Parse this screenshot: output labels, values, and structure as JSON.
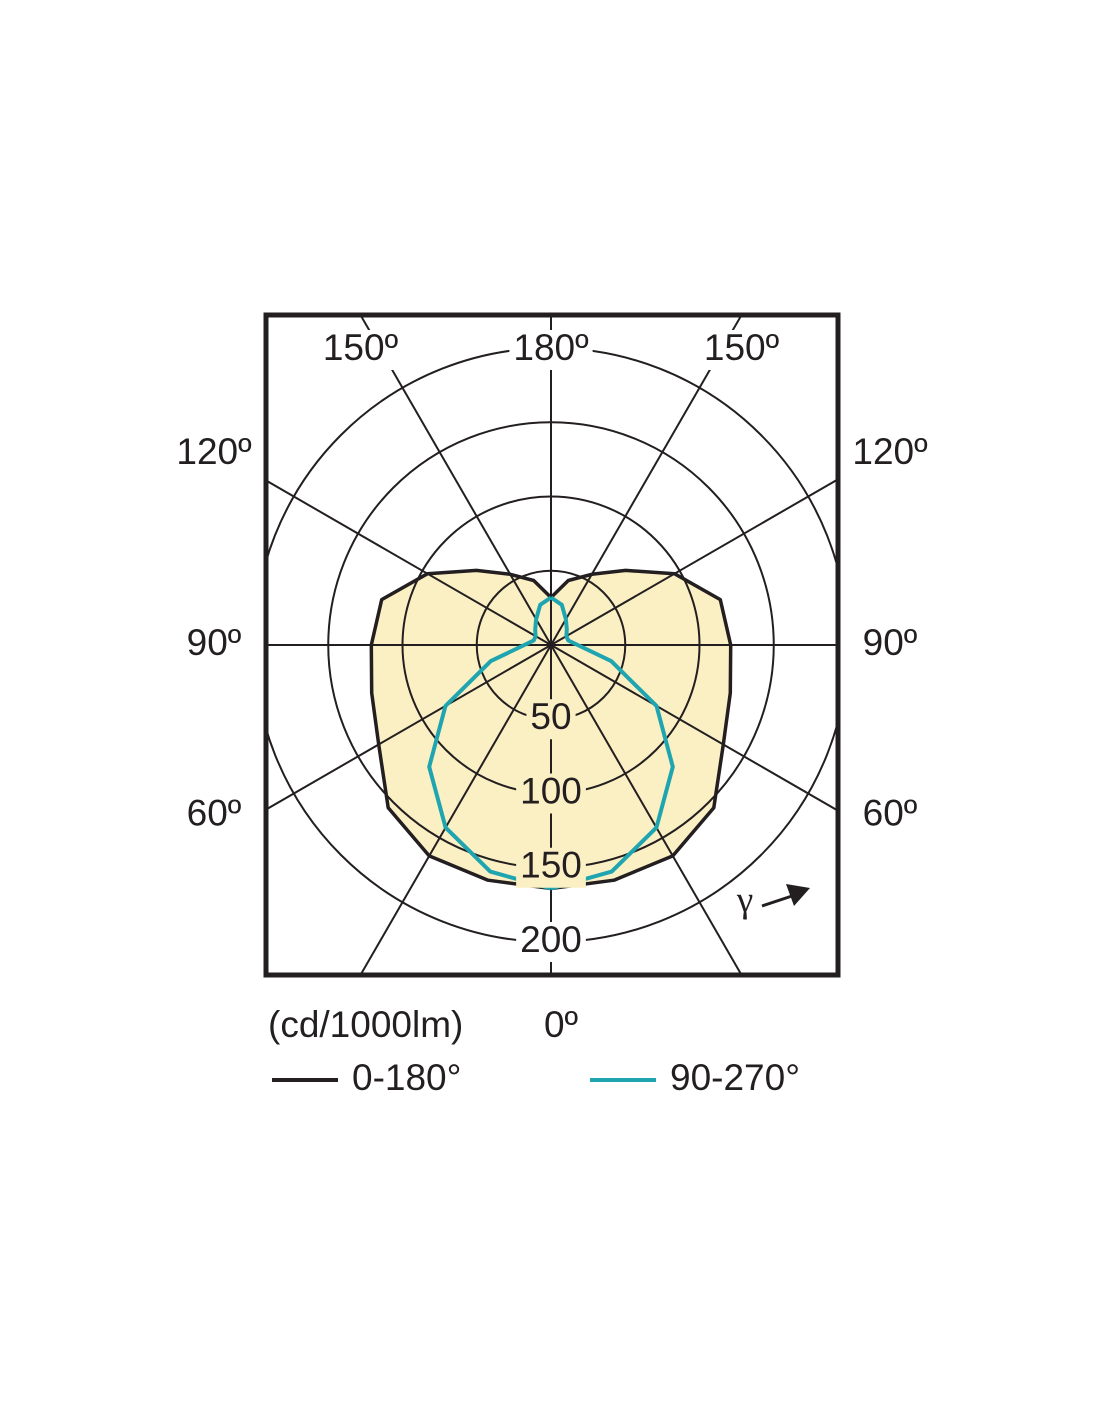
{
  "chart_data": {
    "type": "polar",
    "unit_label": "(cd/1000lm)",
    "gamma_label": "γ",
    "angles": [
      0,
      15,
      30,
      45,
      60,
      75,
      90,
      105,
      120,
      135,
      150,
      165,
      180
    ],
    "rlim": [
      0,
      200
    ],
    "rticks": [
      50,
      100,
      150,
      200
    ],
    "angle_ticks": [
      {
        "value": 0,
        "label": "0º"
      },
      {
        "value": 30,
        "label": null
      },
      {
        "value": 60,
        "label": "60º"
      },
      {
        "value": 90,
        "label": "90º"
      },
      {
        "value": 120,
        "label": "120º"
      },
      {
        "value": 150,
        "label": "150º"
      },
      {
        "value": 180,
        "label": "180º"
      }
    ],
    "series": [
      {
        "name": "0-180°",
        "color": "#231f20",
        "fill": "#fbefc4",
        "values": [
          164,
          164,
          164,
          155,
          134,
          125,
          121,
          118,
          96,
          71,
          55,
          45,
          32
        ]
      },
      {
        "name": "90-270°",
        "color": "#1fa5b0",
        "values": [
          164,
          158,
          142,
          116,
          82,
          42,
          18,
          12,
          12,
          15,
          20,
          28,
          32
        ]
      }
    ]
  }
}
